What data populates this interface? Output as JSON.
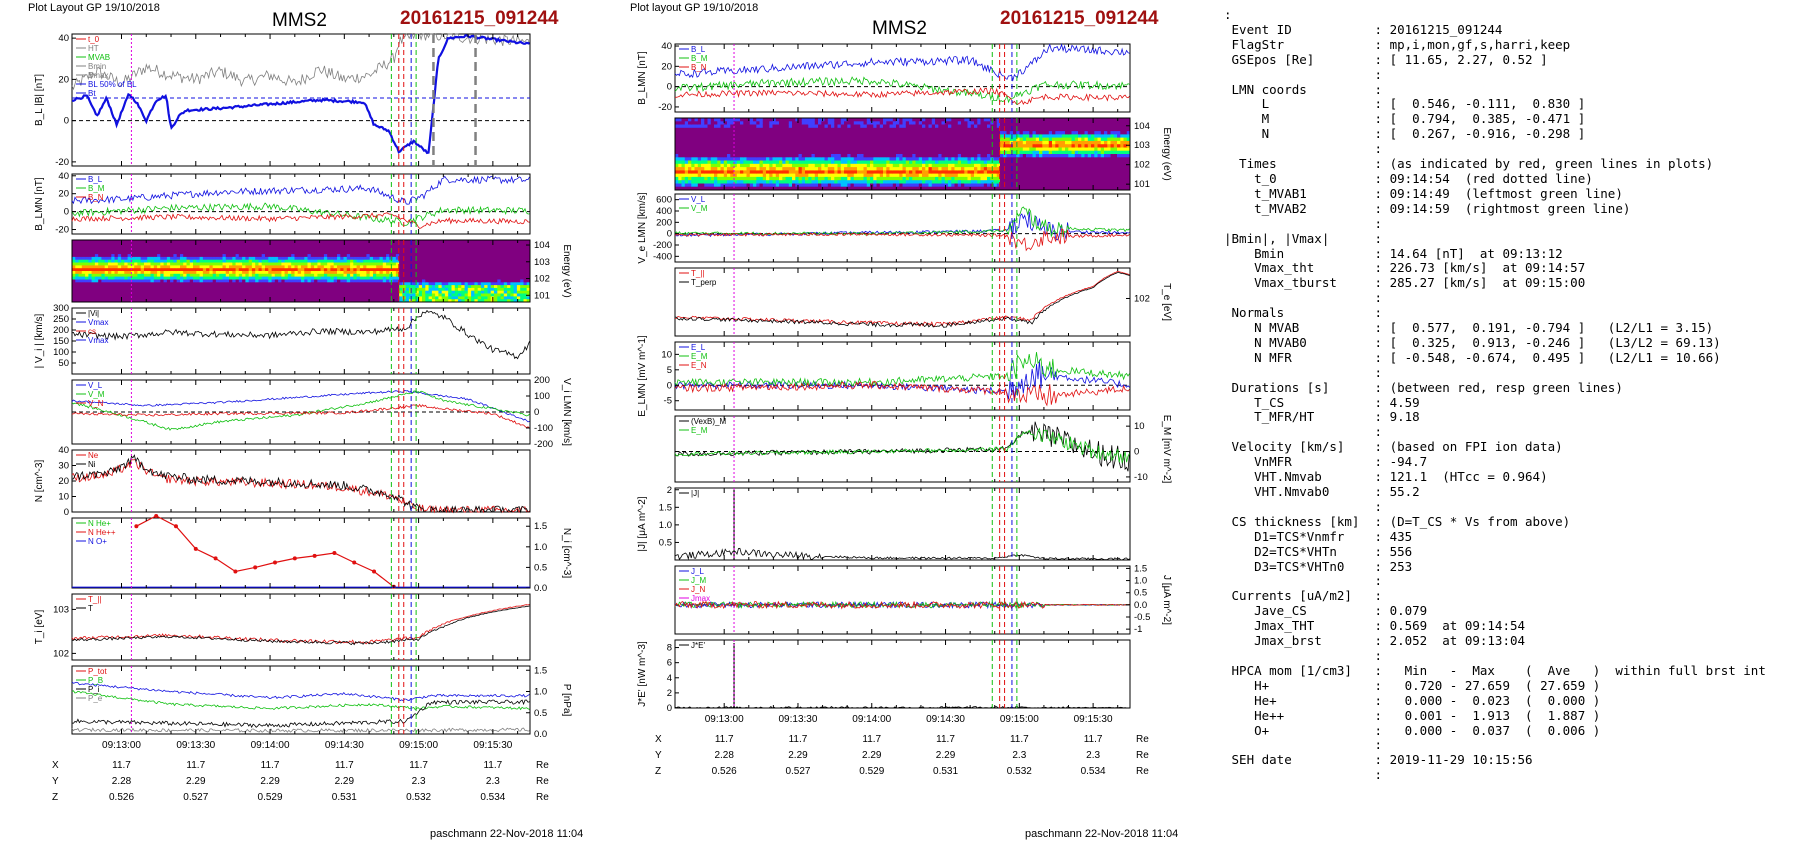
{
  "left": {
    "header": "Plot Layout GP 19/10/2018",
    "spacecraft": "MMS2",
    "event": "20161215_091244",
    "footer": "paschmann 22-Nov-2018 11:04"
  },
  "right": {
    "header": "Plot layout GP 19/10/2018",
    "spacecraft": "MMS2",
    "event": "20161215_091244",
    "footer": "paschmann 22-Nov-2018 11:04"
  },
  "time_ticks": [
    "09:13:00",
    "09:13:30",
    "09:14:00",
    "09:14:30",
    "09:15:00",
    "09:15:30"
  ],
  "position_table": {
    "rows": [
      {
        "label": "X",
        "values": [
          "11.7",
          "11.7",
          "11.7",
          "11.7",
          "11.7",
          "11.7"
        ],
        "unit": "Re"
      },
      {
        "label": "Y",
        "values": [
          "2.28",
          "2.29",
          "2.29",
          "2.29",
          "2.3",
          "2.3"
        ],
        "unit": "Re"
      },
      {
        "label": "Z",
        "values": [
          "0.526",
          "0.527",
          "0.529",
          "0.531",
          "0.532",
          "0.534"
        ],
        "unit": "Re"
      }
    ]
  },
  "colors": {
    "blue": "#1010e0",
    "red": "#e01010",
    "green": "#10c010",
    "black": "#000000",
    "gray": "#808080",
    "magenta": "#e000e0",
    "event_title": "#a01010"
  },
  "chart_data": [
    {
      "type": "line",
      "id": "L1",
      "ylabel": "B_L |B| [nT]",
      "ylim": [
        -22,
        42
      ],
      "yticks": [
        -20,
        0,
        20,
        40
      ],
      "series": [
        {
          "name": "|B|"
        },
        {
          "name": "B_L"
        },
        {
          "name": "BL 50% of BL"
        }
      ],
      "legend": [
        "t_0",
        "HT",
        "MVAB",
        "Bmin",
        "Bmax",
        "BL 50% of BL",
        "Bt"
      ]
    },
    {
      "type": "line",
      "id": "L2",
      "ylabel": "B_LMN [nT]",
      "ylim": [
        -25,
        42
      ],
      "yticks": [
        -20,
        0,
        20,
        40
      ],
      "series": [
        {
          "name": "B_L"
        },
        {
          "name": "B_M"
        },
        {
          "name": "B_N"
        }
      ]
    },
    {
      "type": "heatmap",
      "id": "L3",
      "ylabel": "Energy (eV)",
      "yticks": [
        "10^1",
        "10^2",
        "10^3",
        "10^4"
      ]
    },
    {
      "type": "line",
      "id": "L4",
      "ylabel": "| V_i | [km/s]",
      "ylim": [
        0,
        300
      ],
      "yticks": [
        50,
        100,
        150,
        200,
        250,
        300
      ],
      "legend": [
        "|Vi|",
        "Vmax",
        "cs",
        "Vmax"
      ]
    },
    {
      "type": "line",
      "id": "L5",
      "ylabel": "V_i LMN [km/s]",
      "ylim": [
        -200,
        200
      ],
      "yticks": [
        -200,
        -100,
        0,
        100,
        200
      ],
      "series": [
        {
          "name": "V_L"
        },
        {
          "name": "V_M"
        },
        {
          "name": "V_N"
        }
      ]
    },
    {
      "type": "line",
      "id": "L6",
      "ylabel": "N [cm^-3]",
      "ylim": [
        0,
        40
      ],
      "yticks": [
        0,
        10,
        20,
        30,
        40
      ],
      "series": [
        {
          "name": "Ne"
        },
        {
          "name": "Ni"
        }
      ]
    },
    {
      "type": "line",
      "id": "L7",
      "ylabel": "N_i [cm^-3]",
      "ylim": [
        0,
        1.7
      ],
      "yticks": [
        0.0,
        0.5,
        1.0,
        1.5
      ],
      "series": [
        {
          "name": "N He+"
        },
        {
          "name": "N He++"
        },
        {
          "name": "N O+"
        }
      ],
      "x": [
        "09:13:06",
        "09:13:14",
        "09:13:22",
        "09:13:30",
        "09:13:38",
        "09:13:46",
        "09:13:54",
        "09:14:02",
        "09:14:10",
        "09:14:18",
        "09:14:26",
        "09:14:34",
        "09:14:42",
        "09:14:50"
      ],
      "values": [
        1.5,
        1.75,
        1.5,
        0.95,
        0.72,
        0.4,
        0.5,
        0.62,
        0.72,
        0.78,
        0.85,
        0.62,
        0.4,
        0.03
      ]
    },
    {
      "type": "line",
      "id": "L8",
      "ylabel": "T_i [eV]",
      "yticks": [
        "10^2",
        "10^3"
      ],
      "series": [
        {
          "name": "T_||"
        },
        {
          "name": "T"
        }
      ]
    },
    {
      "type": "line",
      "id": "L9",
      "ylabel": "P [nPa]",
      "ylim": [
        0,
        1.6
      ],
      "yticks": [
        0.0,
        0.5,
        1.0,
        1.5
      ],
      "series": [
        {
          "name": "P_tot"
        },
        {
          "name": "P_B"
        },
        {
          "name": "P_i"
        },
        {
          "name": "P_e"
        }
      ]
    },
    {
      "type": "line",
      "id": "R1",
      "ylabel": "B_LMN [nT]",
      "ylim": [
        -25,
        42
      ],
      "yticks": [
        -20,
        0,
        20,
        40
      ],
      "series": [
        {
          "name": "B_L"
        },
        {
          "name": "B_M"
        },
        {
          "name": "B_N"
        }
      ]
    },
    {
      "type": "heatmap",
      "id": "R2",
      "ylabel": "Energy (eV)",
      "yticks": [
        "10^1",
        "10^2",
        "10^3",
        "10^4"
      ]
    },
    {
      "type": "line",
      "id": "R3",
      "ylabel": "V_e LMN [km/s]",
      "ylim": [
        -500,
        700
      ],
      "yticks": [
        -400,
        -200,
        0,
        200,
        400,
        600
      ],
      "series": [
        {
          "name": "V_L"
        },
        {
          "name": "V_M"
        },
        {
          "name": "V_N"
        }
      ]
    },
    {
      "type": "line",
      "id": "R4",
      "ylabel": "T_e [eV]",
      "yticks": [
        "10^2"
      ],
      "series": [
        {
          "name": "T_||"
        },
        {
          "name": "T_perp"
        }
      ]
    },
    {
      "type": "line",
      "id": "R5",
      "ylabel": "E_LMN [mV m^-1]",
      "ylim": [
        -8,
        14
      ],
      "yticks": [
        -5,
        0,
        5,
        10
      ],
      "series": [
        {
          "name": "E_L"
        },
        {
          "name": "E_M"
        },
        {
          "name": "E_N"
        }
      ]
    },
    {
      "type": "line",
      "id": "R6",
      "ylabel": "E_M [mV m^-2]",
      "ylim": [
        -12,
        14
      ],
      "yticks": [
        -10,
        0,
        10
      ],
      "series": [
        {
          "name": "(VexB)_M"
        },
        {
          "name": "E_M"
        }
      ]
    },
    {
      "type": "line",
      "id": "R7",
      "ylabel": "|J| [μA m^-2]",
      "ylim": [
        0,
        2.05
      ],
      "yticks": [
        0.5,
        1.0,
        1.5,
        2.0
      ],
      "series": [
        {
          "name": "|J|"
        }
      ]
    },
    {
      "type": "line",
      "id": "R8",
      "ylabel": "J [μA m^-2]",
      "ylim": [
        -1.2,
        1.6
      ],
      "yticks": [
        -1.0,
        -0.5,
        0.0,
        0.5,
        1.0,
        1.5
      ],
      "series": [
        {
          "name": "J_L"
        },
        {
          "name": "J_M"
        },
        {
          "name": "J_N"
        },
        {
          "name": "Jmax"
        }
      ]
    },
    {
      "type": "line",
      "id": "R9",
      "ylabel": "J*E' [nW m^-3]",
      "ylim": [
        0,
        9
      ],
      "yticks": [
        0,
        2,
        4,
        6,
        8
      ],
      "series": [
        {
          "name": "J*E'"
        }
      ]
    }
  ],
  "summary": [
    ":",
    " Event ID           : 20161215_091244",
    " FlagStr            : mp,i,mon,gf,s,harri,keep",
    " GSEpos [Re]        : [ 11.65, 2.27, 0.52 ]",
    "                    :",
    " LMN coords         :",
    "     L              : [  0.546, -0.111,  0.830 ]",
    "     M              : [  0.794,  0.385, -0.471 ]",
    "     N              : [  0.267, -0.916, -0.298 ]",
    "                    :",
    "  Times             : (as indicated by red, green lines in plots)",
    "    t_0             : 09:14:54  (red dotted line)",
    "    t_MVAB1         : 09:14:49  (leftmost green line)",
    "    t_MVAB2         : 09:14:59  (rightmost green line)",
    "                    :",
    "|Bmin|, |Vmax|      :",
    "    Bmin            : 14.64 [nT]  at 09:13:12",
    "    Vmax_tht        : 226.73 [km/s]  at 09:14:57",
    "    Vmax_tburst     : 285.27 [km/s]  at 09:15:00",
    "                    :",
    " Normals            :",
    "    N MVAB          : [  0.577,  0.191, -0.794 ]   (L2/L1 = 3.15)",
    "    N MVAB0         : [  0.325,  0.913, -0.246 ]   (L3/L2 = 69.13)",
    "    N MFR           : [ -0.548, -0.674,  0.495 ]   (L2/L1 = 10.66)",
    "                    :",
    " Durations [s]      : (between red, resp green lines)",
    "    T_CS            : 4.59",
    "    T_MFR/HT        : 9.18",
    "                    :",
    " Velocity [km/s]    : (based on FPI ion data)",
    "    VnMFR           : -94.7",
    "    VHT.Nmvab       : 121.1  (HTcc = 0.964)",
    "    VHT.Nmvab0      : 55.2",
    "                    :",
    " CS thickness [km]  : (D=T_CS * Vs from above)",
    "    D1=TCS*Vnmfr    : 435",
    "    D2=TCS*VHTn     : 556",
    "    D3=TCS*VHTn0    : 253",
    "                    :",
    " Currents [uA/m2]   :",
    "    Jave_CS         : 0.079",
    "    Jmax_THT        : 0.569  at 09:14:54",
    "    Jmax_brst       : 2.052  at 09:13:04",
    "                    :",
    " HPCA mom [1/cm3]   :   Min   -  Max    (  Ave   )  within full brst int",
    "    H+              :   0.720 - 27.659  ( 27.659 )",
    "    He+             :   0.000 -  0.023  (  0.000 )",
    "    He++            :   0.001 -  1.913  (  1.887 )",
    "    O+              :   0.000 -  0.037  (  0.006 )",
    "                    :",
    " SEH date           : 2019-11-29 10:15:56",
    "                    :"
  ]
}
